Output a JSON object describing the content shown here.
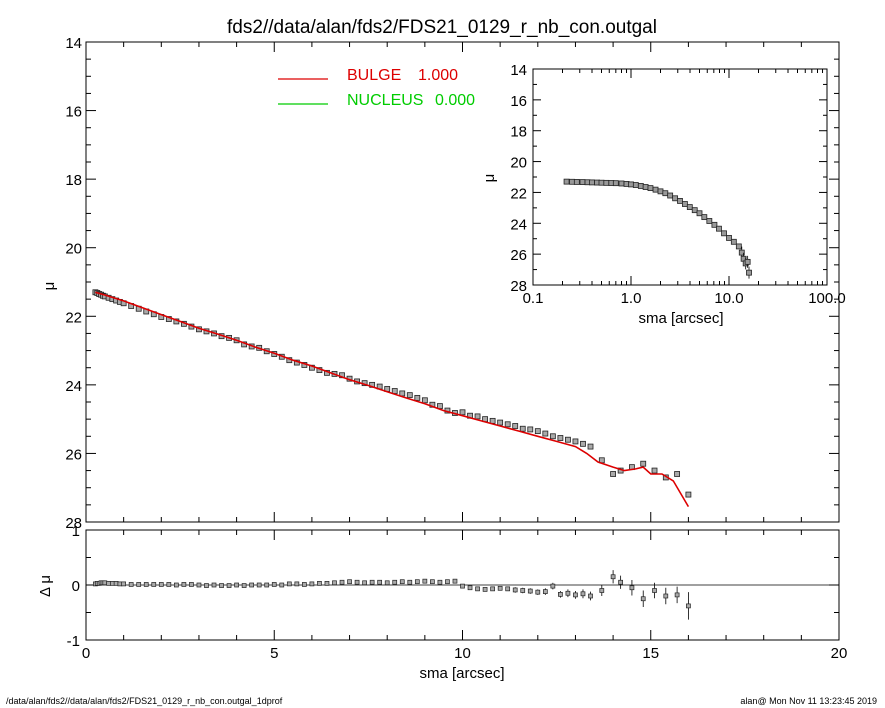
{
  "header": {
    "title": "fds2//data/alan/fds2/FDS21_0129_r_nb_con.outgal"
  },
  "footer": {
    "left": "/data/alan/fds2//data/alan/fds2/FDS21_0129_r_nb_con.outgal_1dprof",
    "right": "alan@  Mon Nov 11 13:23:45 2019"
  },
  "colors": {
    "bulge": "#dd0000",
    "nucleus": "#00cc00",
    "data": "#000000"
  },
  "chart_data": [
    {
      "id": "main",
      "type": "scatter",
      "xlabel": "sma [arcsec]",
      "ylabel": "μ",
      "xlim": [
        0,
        20
      ],
      "ylim": [
        28,
        14
      ],
      "xticks": [
        "0",
        "5",
        "10",
        "15",
        "20"
      ],
      "yticks": [
        "14",
        "16",
        "18",
        "20",
        "22",
        "24",
        "26",
        "28"
      ],
      "legend": {
        "placement": "top",
        "entries": [
          {
            "name": "BULGE",
            "value": "1.000",
            "color": "#dd0000"
          },
          {
            "name": "NUCLEUS",
            "value": "0.000",
            "color": "#00cc00"
          }
        ]
      },
      "series": [
        {
          "kind": "points",
          "x": [
            0.25,
            0.3,
            0.35,
            0.4,
            0.45,
            0.5,
            0.6,
            0.7,
            0.8,
            0.9,
            1.0,
            1.2,
            1.4,
            1.6,
            1.8,
            2.0,
            2.2,
            2.4,
            2.6,
            2.8,
            3.0,
            3.2,
            3.4,
            3.6,
            3.8,
            4.0,
            4.2,
            4.4,
            4.6,
            4.8,
            5.0,
            5.2,
            5.4,
            5.6,
            5.8,
            6.0,
            6.2,
            6.4,
            6.6,
            6.8,
            7.0,
            7.2,
            7.4,
            7.6,
            7.8,
            8.0,
            8.2,
            8.4,
            8.6,
            8.8,
            9.0,
            9.2,
            9.4,
            9.6,
            9.8,
            10.0,
            10.2,
            10.4,
            10.6,
            10.8,
            11.0,
            11.2,
            11.4,
            11.6,
            11.8,
            12.0,
            12.2,
            12.4,
            12.6,
            12.8,
            13.0,
            13.2,
            13.4,
            13.7,
            14.0,
            14.2,
            14.5,
            14.8,
            15.1,
            15.4,
            15.7,
            16.0
          ],
          "y": [
            21.3,
            21.32,
            21.35,
            21.37,
            21.4,
            21.42,
            21.46,
            21.5,
            21.54,
            21.58,
            21.62,
            21.7,
            21.78,
            21.86,
            21.94,
            22.02,
            22.08,
            22.15,
            22.22,
            22.3,
            22.38,
            22.44,
            22.5,
            22.58,
            22.63,
            22.7,
            22.82,
            22.88,
            22.92,
            23.02,
            23.1,
            23.18,
            23.28,
            23.35,
            23.42,
            23.5,
            23.57,
            23.65,
            23.68,
            23.72,
            23.82,
            23.9,
            23.95,
            24.0,
            24.05,
            24.12,
            24.18,
            24.25,
            24.3,
            24.38,
            24.45,
            24.58,
            24.62,
            24.75,
            24.82,
            24.8,
            24.9,
            24.92,
            25.0,
            25.05,
            25.1,
            25.15,
            25.2,
            25.28,
            25.3,
            25.35,
            25.42,
            25.5,
            25.55,
            25.6,
            25.65,
            25.72,
            25.8,
            26.2,
            26.6,
            26.5,
            26.4,
            26.3,
            26.5,
            26.7,
            26.6,
            27.2
          ]
        },
        {
          "name": "BULGE",
          "kind": "line",
          "color": "#dd0000",
          "x": [
            0.25,
            0.5,
            1,
            1.5,
            2,
            2.5,
            3,
            3.5,
            4,
            4.5,
            5,
            5.5,
            6,
            6.5,
            7,
            7.5,
            8,
            8.5,
            9,
            9.5,
            10,
            10.5,
            11,
            11.5,
            12,
            12.5,
            13,
            13.3,
            13.6,
            14,
            14.3,
            14.6,
            14.8,
            15,
            15.3,
            15.6,
            16
          ],
          "y": [
            21.3,
            21.38,
            21.55,
            21.75,
            21.95,
            22.15,
            22.35,
            22.52,
            22.7,
            22.9,
            23.08,
            23.28,
            23.45,
            23.65,
            23.85,
            24.02,
            24.2,
            24.38,
            24.55,
            24.75,
            24.9,
            25.05,
            25.2,
            25.35,
            25.5,
            25.65,
            25.8,
            26.0,
            26.25,
            26.4,
            26.5,
            26.45,
            26.4,
            26.6,
            26.6,
            26.8,
            27.55
          ]
        }
      ]
    },
    {
      "id": "residual",
      "type": "scatter",
      "xlabel": "sma [arcsec]",
      "ylabel": "Δ μ",
      "xlim": [
        0,
        20
      ],
      "ylim": [
        -1,
        1
      ],
      "yticks": [
        "1",
        "0",
        "-1"
      ],
      "series": [
        {
          "kind": "points",
          "x": [
            0.25,
            0.3,
            0.35,
            0.4,
            0.45,
            0.5,
            0.6,
            0.7,
            0.8,
            0.9,
            1.0,
            1.2,
            1.4,
            1.6,
            1.8,
            2.0,
            2.2,
            2.4,
            2.6,
            2.8,
            3.0,
            3.2,
            3.4,
            3.6,
            3.8,
            4.0,
            4.2,
            4.4,
            4.6,
            4.8,
            5.0,
            5.2,
            5.4,
            5.6,
            5.8,
            6.0,
            6.2,
            6.4,
            6.6,
            6.8,
            7.0,
            7.2,
            7.4,
            7.6,
            7.8,
            8.0,
            8.2,
            8.4,
            8.6,
            8.8,
            9.0,
            9.2,
            9.4,
            9.6,
            9.8,
            10.0,
            10.2,
            10.4,
            10.6,
            10.8,
            11.0,
            11.2,
            11.4,
            11.6,
            11.8,
            12.0,
            12.2,
            12.4,
            12.6,
            12.8,
            13.0,
            13.2,
            13.4,
            13.7,
            14.0,
            14.2,
            14.5,
            14.8,
            15.1,
            15.4,
            15.7,
            16.0
          ],
          "y": [
            0.02,
            0.03,
            0.03,
            0.04,
            0.04,
            0.04,
            0.03,
            0.03,
            0.03,
            0.02,
            0.02,
            0.01,
            0.01,
            0.01,
            0.01,
            0.01,
            0.01,
            0.0,
            0.01,
            0.01,
            0.0,
            -0.01,
            0.0,
            -0.01,
            -0.01,
            0.0,
            -0.01,
            0.0,
            0.0,
            0.0,
            0.01,
            0.0,
            0.02,
            0.02,
            0.01,
            0.02,
            0.03,
            0.03,
            0.04,
            0.05,
            0.06,
            0.05,
            0.04,
            0.05,
            0.05,
            0.04,
            0.05,
            0.06,
            0.05,
            0.06,
            0.07,
            0.06,
            0.05,
            0.06,
            0.07,
            -0.02,
            -0.05,
            -0.07,
            -0.08,
            -0.07,
            -0.06,
            -0.07,
            -0.09,
            -0.1,
            -0.11,
            -0.13,
            -0.12,
            -0.02,
            -0.17,
            -0.15,
            -0.18,
            -0.16,
            -0.2,
            -0.1,
            0.15,
            0.05,
            -0.05,
            -0.25,
            -0.1,
            -0.2,
            -0.18,
            -0.38
          ],
          "err": [
            0.02,
            0.02,
            0.02,
            0.02,
            0.02,
            0.02,
            0.02,
            0.02,
            0.02,
            0.02,
            0.02,
            0.02,
            0.02,
            0.02,
            0.02,
            0.02,
            0.02,
            0.02,
            0.02,
            0.02,
            0.02,
            0.02,
            0.02,
            0.02,
            0.02,
            0.02,
            0.02,
            0.02,
            0.02,
            0.02,
            0.02,
            0.02,
            0.02,
            0.02,
            0.02,
            0.02,
            0.02,
            0.02,
            0.02,
            0.02,
            0.03,
            0.03,
            0.03,
            0.03,
            0.03,
            0.03,
            0.03,
            0.03,
            0.03,
            0.03,
            0.03,
            0.03,
            0.03,
            0.03,
            0.03,
            0.04,
            0.04,
            0.04,
            0.04,
            0.04,
            0.04,
            0.04,
            0.05,
            0.05,
            0.05,
            0.05,
            0.06,
            0.06,
            0.06,
            0.07,
            0.07,
            0.08,
            0.08,
            0.1,
            0.12,
            0.12,
            0.14,
            0.15,
            0.14,
            0.15,
            0.15,
            0.25
          ]
        }
      ]
    },
    {
      "id": "inset",
      "type": "scatter",
      "xscale": "log",
      "xlabel": "sma [arcsec]",
      "ylabel": "μ",
      "xlim": [
        0.1,
        100
      ],
      "ylim": [
        28,
        14
      ],
      "xticks": [
        "0.1",
        "1.0",
        "10.0",
        "100.0"
      ],
      "yticks": [
        "14",
        "16",
        "18",
        "20",
        "22",
        "24",
        "26",
        "28"
      ],
      "series": [
        {
          "kind": "points",
          "x": [
            0.22,
            0.25,
            0.28,
            0.32,
            0.36,
            0.4,
            0.45,
            0.5,
            0.56,
            0.63,
            0.7,
            0.8,
            0.9,
            1.0,
            1.12,
            1.26,
            1.41,
            1.58,
            1.78,
            2.0,
            2.24,
            2.51,
            2.82,
            3.16,
            3.55,
            3.98,
            4.47,
            5.0,
            5.6,
            6.3,
            7.1,
            7.9,
            8.9,
            10.0,
            11.2,
            12.6,
            13.5,
            14.1,
            14.8,
            15.5,
            16.0
          ],
          "y": [
            21.3,
            21.31,
            21.32,
            21.33,
            21.34,
            21.35,
            21.36,
            21.37,
            21.38,
            21.39,
            21.4,
            21.42,
            21.45,
            21.48,
            21.52,
            21.58,
            21.65,
            21.72,
            21.82,
            21.93,
            22.05,
            22.2,
            22.38,
            22.55,
            22.75,
            22.95,
            23.15,
            23.35,
            23.6,
            23.85,
            24.1,
            24.35,
            24.65,
            24.95,
            25.2,
            25.5,
            25.9,
            26.3,
            26.6,
            26.5,
            27.2
          ]
        }
      ]
    }
  ]
}
